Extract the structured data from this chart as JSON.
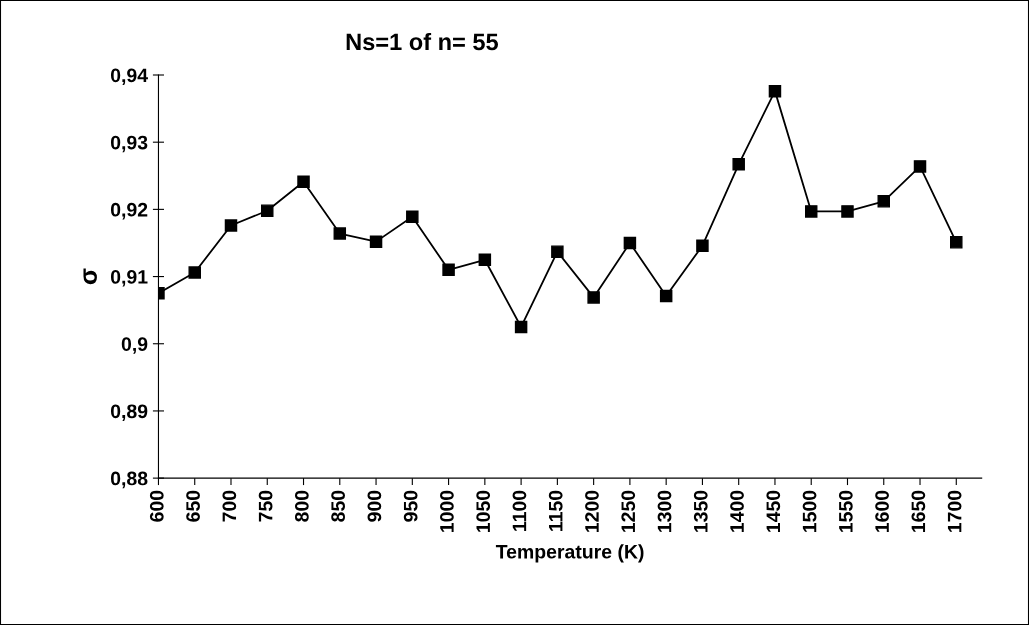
{
  "chart_data": {
    "type": "line",
    "title": "Ns=1 of n= 55",
    "xlabel": "Temperature (K)",
    "ylabel": "σ",
    "categories": [
      "600",
      "650",
      "700",
      "750",
      "800",
      "850",
      "900",
      "950",
      "1000",
      "1050",
      "1100",
      "1150",
      "1200",
      "1250",
      "1300",
      "1350",
      "1400",
      "1450",
      "1500",
      "1550",
      "1600",
      "1650",
      "1700"
    ],
    "series": [
      {
        "color": "#000000",
        "values": [
          0.9075,
          0.9106,
          0.9176,
          0.9198,
          0.9241,
          0.9164,
          0.9152,
          0.9189,
          0.911,
          0.9125,
          0.9025,
          0.9137,
          0.9069,
          0.915,
          0.9071,
          0.9146,
          0.9267,
          0.9376,
          0.9197,
          0.9197,
          0.9212,
          0.9264,
          0.9151
        ]
      }
    ],
    "ylim": [
      0.88,
      0.94
    ],
    "yticks": [
      {
        "value": 0.88,
        "label": "0,88"
      },
      {
        "value": 0.89,
        "label": "0,89"
      },
      {
        "value": 0.9,
        "label": "0,9"
      },
      {
        "value": 0.91,
        "label": "0,91"
      },
      {
        "value": 0.92,
        "label": "0,92"
      },
      {
        "value": 0.93,
        "label": "0,93"
      },
      {
        "value": 0.94,
        "label": "0,94"
      }
    ],
    "grid": false,
    "legend": false,
    "marker": "square",
    "line_style": "solid"
  }
}
